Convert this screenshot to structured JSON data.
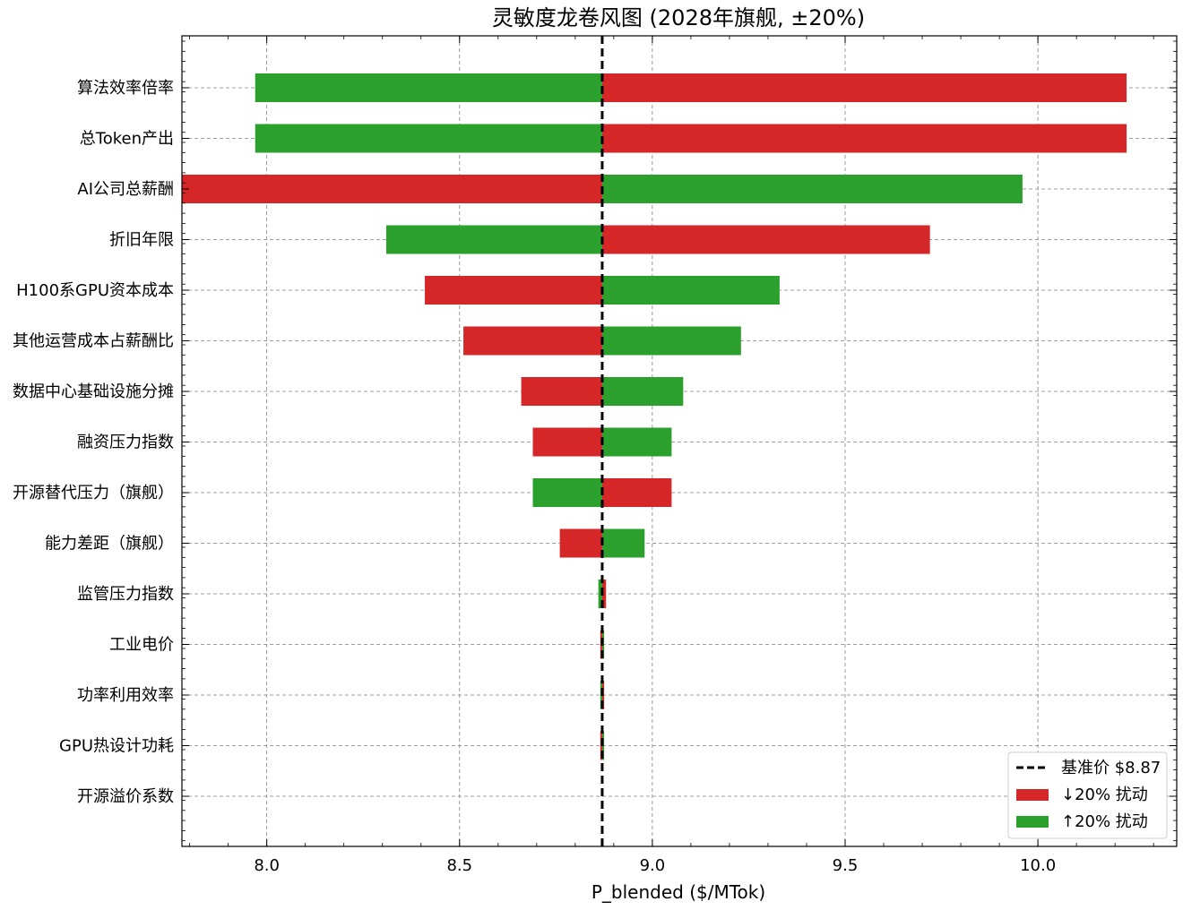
{
  "chart_data": {
    "type": "bar",
    "orientation": "horizontal-tornado",
    "title": "灵敏度龙卷风图 (2028年旗舰, ±20%)",
    "xlabel": "P_blended ($/MTok)",
    "ylabel": "",
    "xlim": [
      7.78,
      10.36
    ],
    "xticks": [
      8.0,
      8.5,
      9.0,
      9.5,
      10.0
    ],
    "xtick_labels": [
      "8.0",
      "8.5",
      "9.0",
      "9.5",
      "10.0"
    ],
    "grid": true,
    "legend_position": "bottom-right",
    "base_value": 8.87,
    "base_line_label": "基准价 $8.87",
    "colors": {
      "down": "#d62728",
      "up": "#2ca02c",
      "base": "#000000"
    },
    "categories": [
      "算法效率倍率",
      "总Token产出",
      "AI公司总薪酬",
      "折旧年限",
      "H100系GPU资本成本",
      "其他运营成本占薪酬比",
      "数据中心基础设施分摊",
      "融资压力指数",
      "开源替代压力（旗舰）",
      "能力差距（旗舰）",
      "监管压力指数",
      "工业电价",
      "功率利用效率",
      "GPU热设计功耗",
      "开源溢价系数"
    ],
    "series": [
      {
        "name": "↓20% 扰动",
        "values": [
          10.23,
          10.23,
          7.78,
          9.72,
          8.41,
          8.51,
          8.66,
          8.69,
          9.05,
          8.76,
          8.88,
          8.865,
          8.875,
          8.865,
          8.87
        ]
      },
      {
        "name": "↑20% 扰动",
        "values": [
          7.97,
          7.97,
          9.96,
          8.31,
          9.33,
          9.23,
          9.08,
          9.05,
          8.69,
          8.98,
          8.86,
          8.875,
          8.865,
          8.875,
          8.87
        ]
      }
    ]
  }
}
